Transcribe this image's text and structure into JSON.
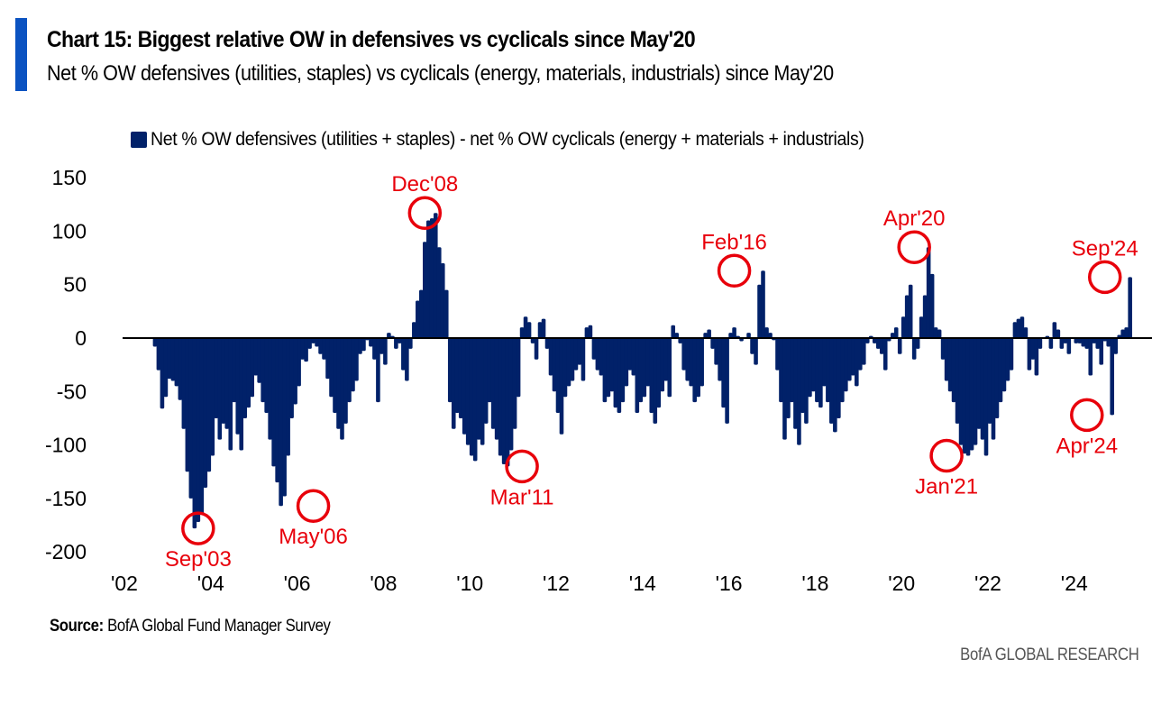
{
  "header": {
    "title": "Chart 15: Biggest relative OW in defensives vs cyclicals since May'20",
    "subtitle": "Net % OW defensives (utilities, staples) vs cyclicals (energy, materials, industrials) since May'20"
  },
  "footer": {
    "source_label": "Source:",
    "source_text": " BofA Global Fund Manager Survey",
    "brand": "BofA GLOBAL RESEARCH"
  },
  "colors": {
    "bar": "#012169",
    "annotation": "#e8000b",
    "accent": "#0b53c1",
    "axis": "#000000"
  },
  "chart_data": {
    "type": "bar",
    "title": "Chart 15: Biggest relative OW in defensives vs cyclicals since May'20",
    "subtitle": "Net % OW defensives (utilities, staples) vs cyclicals (energy, materials, industrials) since May'20",
    "xlabel": "",
    "ylabel": "",
    "ylim": [
      -200,
      150
    ],
    "yticks": [
      150,
      100,
      50,
      0,
      -50,
      -100,
      -150,
      -200
    ],
    "xticks": [
      {
        "label": "'02",
        "year": 2002
      },
      {
        "label": "'04",
        "year": 2004
      },
      {
        "label": "'06",
        "year": 2006
      },
      {
        "label": "'08",
        "year": 2008
      },
      {
        "label": "'10",
        "year": 2010
      },
      {
        "label": "'12",
        "year": 2012
      },
      {
        "label": "'14",
        "year": 2014
      },
      {
        "label": "'16",
        "year": 2016
      },
      {
        "label": "'18",
        "year": 2018
      },
      {
        "label": "'20",
        "year": 2020
      },
      {
        "label": "'22",
        "year": 2022
      },
      {
        "label": "'24",
        "year": 2024
      }
    ],
    "xlim_years": [
      2002,
      2025.2
    ],
    "grid": false,
    "legend": {
      "position": "top",
      "entries": [
        "Net % OW defensives (utilities + staples) - net % OW cyclicals (energy + materials + industrials)"
      ]
    },
    "series": [
      {
        "name": "Net % OW defensives (utilities + staples) - net % OW cyclicals (energy + materials + industrials)",
        "frequency": "monthly",
        "start": "2002-09",
        "values": [
          -8,
          -30,
          -66,
          -55,
          -38,
          -40,
          -45,
          -58,
          -85,
          -125,
          -150,
          -178,
          -172,
          -165,
          -140,
          -125,
          -110,
          -75,
          -95,
          -80,
          -85,
          -105,
          -60,
          -90,
          -105,
          -75,
          -65,
          -55,
          -35,
          -42,
          -60,
          -70,
          -95,
          -120,
          -135,
          -157,
          -148,
          -110,
          -75,
          -62,
          -45,
          -20,
          -22,
          -10,
          -5,
          -8,
          -15,
          -20,
          -38,
          -55,
          -70,
          -85,
          -95,
          -80,
          -60,
          -50,
          -40,
          -15,
          -12,
          -2,
          -8,
          -20,
          -60,
          -15,
          -25,
          5,
          2,
          -10,
          -5,
          -30,
          -40,
          -10,
          15,
          35,
          45,
          90,
          110,
          112,
          117,
          85,
          70,
          45,
          -60,
          -85,
          -70,
          -75,
          -90,
          -100,
          -110,
          -115,
          -95,
          -100,
          -80,
          -60,
          -85,
          -95,
          -110,
          -118,
          -120,
          -105,
          -85,
          -55,
          10,
          20,
          15,
          -5,
          -20,
          15,
          18,
          -10,
          -35,
          -50,
          -70,
          -90,
          -55,
          -45,
          -40,
          -30,
          -25,
          -40,
          10,
          12,
          -20,
          -30,
          -35,
          -60,
          -55,
          -50,
          -65,
          -70,
          -60,
          -45,
          -30,
          -35,
          -70,
          -60,
          -55,
          -45,
          -70,
          -80,
          -65,
          -50,
          -40,
          -55,
          12,
          5,
          -5,
          -30,
          -40,
          -45,
          -60,
          -55,
          -45,
          5,
          8,
          -10,
          -25,
          -40,
          -65,
          -80,
          5,
          10,
          2,
          -3,
          0,
          5,
          -15,
          -25,
          50,
          63,
          10,
          5,
          -2,
          -30,
          -60,
          -95,
          -75,
          -60,
          -85,
          -100,
          -70,
          -80,
          -55,
          -50,
          -60,
          -65,
          -45,
          -60,
          -80,
          -88,
          -75,
          -60,
          -50,
          -40,
          -35,
          -45,
          -30,
          -25,
          -5,
          2,
          -5,
          -10,
          -15,
          -30,
          -3,
          5,
          10,
          -15,
          20,
          40,
          50,
          -20,
          -10,
          20,
          40,
          85,
          60,
          10,
          8,
          -20,
          -40,
          -50,
          -60,
          -80,
          -100,
          -108,
          -110,
          -105,
          -100,
          -85,
          -95,
          -110,
          -80,
          -95,
          -75,
          -60,
          -50,
          -40,
          -30,
          15,
          18,
          20,
          10,
          -30,
          -20,
          -35,
          -10,
          0,
          2,
          -10,
          15,
          8,
          -10,
          -5,
          -15,
          0,
          -5,
          -5,
          -8,
          -10,
          -35,
          -5,
          -10,
          -25,
          -3,
          -8,
          -72,
          -15,
          3,
          8,
          10,
          57
        ]
      }
    ],
    "annotations": [
      {
        "label": "Sep'03",
        "date": "2003-09",
        "value": -178,
        "label_pos": "below"
      },
      {
        "label": "May'06",
        "date": "2006-05",
        "value": -157,
        "label_pos": "below"
      },
      {
        "label": "Dec'08",
        "date": "2008-12",
        "value": 117,
        "label_pos": "above"
      },
      {
        "label": "Mar'11",
        "date": "2011-03",
        "value": -120,
        "label_pos": "below"
      },
      {
        "label": "Feb'16",
        "date": "2016-02",
        "value": 63,
        "label_pos": "above"
      },
      {
        "label": "Apr'20",
        "date": "2020-04",
        "value": 85,
        "label_pos": "above"
      },
      {
        "label": "Jan'21",
        "date": "2021-01",
        "value": -110,
        "label_pos": "below"
      },
      {
        "label": "Apr'24",
        "date": "2024-04",
        "value": -72,
        "label_pos": "below"
      },
      {
        "label": "Sep'24",
        "date": "2024-09",
        "value": 57,
        "label_pos": "above"
      }
    ]
  }
}
